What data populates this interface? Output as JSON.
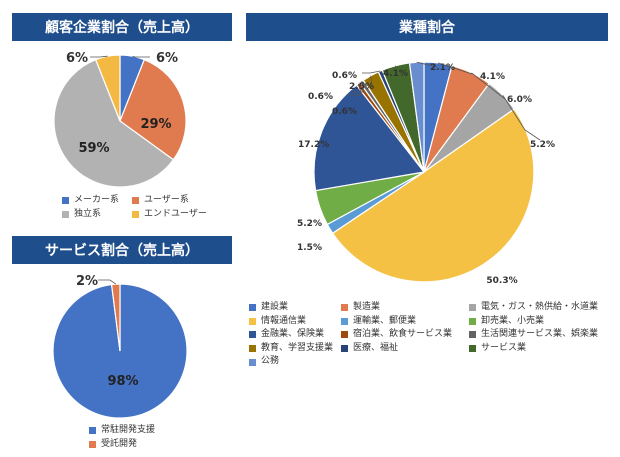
{
  "chart_data": [
    {
      "type": "pie",
      "title": "顧客企業割合（売上高）",
      "slices": [
        {
          "label": "メーカー系",
          "value": 6,
          "display": "6%",
          "color": "#4472c4"
        },
        {
          "label": "ユーザー系",
          "value": 29,
          "display": "29%",
          "color": "#e07b4f"
        },
        {
          "label": "独立系",
          "value": 59,
          "display": "59%",
          "color": "#b2b2b2"
        },
        {
          "label": "エンドユーザー",
          "value": 6,
          "display": "6%",
          "color": "#f4b942"
        }
      ]
    },
    {
      "type": "pie",
      "title": "サービス割合（売上高）",
      "slices": [
        {
          "label": "常駐開発支援",
          "value": 98,
          "display": "98%",
          "color": "#4472c4"
        },
        {
          "label": "受託開発",
          "value": 2,
          "display": "2%",
          "color": "#e07b4f"
        }
      ]
    },
    {
      "type": "pie",
      "title": "業種割合",
      "slices": [
        {
          "label": "建設業",
          "value": 4.1,
          "display": "4.1%",
          "color": "#4472c4"
        },
        {
          "label": "製造業",
          "value": 6.0,
          "display": "6.0%",
          "color": "#e07b4f"
        },
        {
          "label": "電気・ガス・熱供給・水道業",
          "value": 5.2,
          "display": "5.2%",
          "color": "#a5a5a5"
        },
        {
          "label": "情報通信業",
          "value": 50.3,
          "display": "50.3%",
          "color": "#f4c145"
        },
        {
          "label": "運輸業、郵便業",
          "value": 1.5,
          "display": "1.5%",
          "color": "#5b9bd5"
        },
        {
          "label": "卸売業、小売業",
          "value": 5.2,
          "display": "5.2%",
          "color": "#70ad47"
        },
        {
          "label": "金融業、保険業",
          "value": 17.2,
          "display": "17.2%",
          "color": "#2f5597"
        },
        {
          "label": "宿泊業、飲食サービス業",
          "value": 0.6,
          "display": "0.6%",
          "color": "#9e480e"
        },
        {
          "label": "生活関連サービス業、娯楽業",
          "value": 0.6,
          "display": "0.6%",
          "color": "#636363"
        },
        {
          "label": "教育、学習支援業",
          "value": 2.5,
          "display": "2.5%",
          "color": "#997300"
        },
        {
          "label": "医療、福祉",
          "value": 0.6,
          "display": "0.6%",
          "color": "#264478"
        },
        {
          "label": "サービス業",
          "value": 4.1,
          "display": "4.1%",
          "color": "#43682b"
        },
        {
          "label": "公務",
          "value": 2.1,
          "display": "2.1%",
          "color": "#698ed0"
        }
      ]
    }
  ]
}
